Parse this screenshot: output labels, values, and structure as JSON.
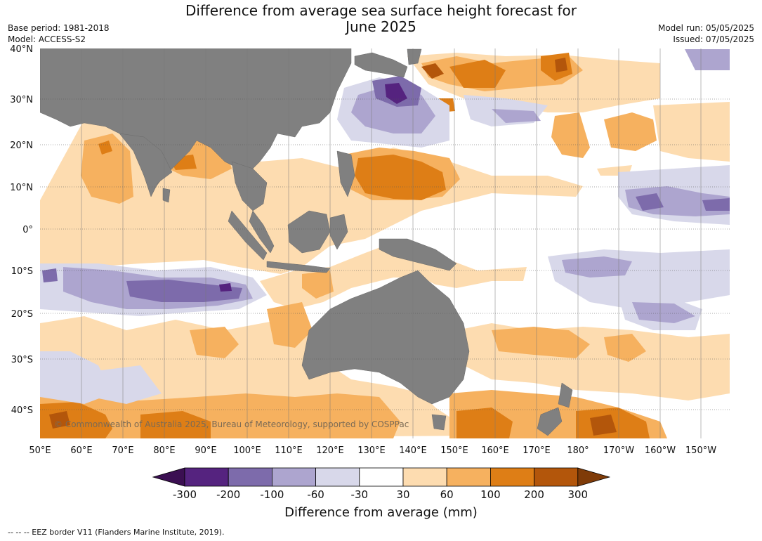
{
  "title": {
    "line1": "Difference from average sea surface height forecast for",
    "line2": "June 2025"
  },
  "meta": {
    "base_period": "Base period: 1981-2018",
    "model": "Model: ACCESS-S2",
    "model_run": "Model run: 05/05/2025",
    "issued": "Issued: 07/05/2025"
  },
  "map": {
    "lat_labels": [
      "40°N",
      "30°N",
      "20°N",
      "10°N",
      "0°",
      "10°S",
      "20°S",
      "30°S",
      "40°S"
    ],
    "lon_labels": [
      "50°E",
      "60°E",
      "70°E",
      "80°E",
      "90°E",
      "100°E",
      "110°E",
      "120°E",
      "130°E",
      "140°E",
      "150°E",
      "160°E",
      "170°E",
      "180°",
      "170°W",
      "160°W",
      "150°W"
    ],
    "land_color": "#808080",
    "copyright": "© Commonwealth of Australia 2025, Bureau of Meteorology, supported by COSPPac"
  },
  "colorbar": {
    "title": "Difference from average (mm)",
    "tick_labels": [
      "-300",
      "-200",
      "-100",
      "-60",
      "-30",
      "30",
      "60",
      "100",
      "200",
      "300"
    ],
    "colors": [
      "#3b0f52",
      "#55237f",
      "#7d6bab",
      "#ada5cf",
      "#d8d8ea",
      "#ffffff",
      "#fddcb0",
      "#f6b15f",
      "#de7e16",
      "#b3560b",
      "#7f3b08"
    ]
  },
  "footnote": "--  --  -- EEZ border V11 (Flanders Marine Institute, 2019)."
}
